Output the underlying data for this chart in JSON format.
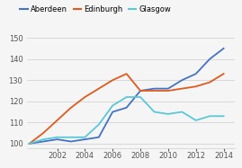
{
  "years": [
    2000,
    2001,
    2002,
    2003,
    2004,
    2005,
    2006,
    2007,
    2008,
    2009,
    2010,
    2011,
    2012,
    2013,
    2014
  ],
  "aberdeen": [
    100,
    101,
    102,
    101,
    102,
    103,
    115,
    117,
    125,
    126,
    126,
    130,
    133,
    140,
    145
  ],
  "edinburgh": [
    100,
    105,
    111,
    117,
    122,
    126,
    130,
    133,
    125,
    125,
    125,
    126,
    127,
    129,
    133
  ],
  "glasgow": [
    100,
    102,
    103,
    103,
    103,
    109,
    118,
    122,
    122,
    115,
    114,
    115,
    111,
    113,
    113
  ],
  "aberdeen_color": "#4472c4",
  "edinburgh_color": "#e05a1e",
  "glasgow_color": "#5bc8d8",
  "ylim": [
    98,
    152
  ],
  "yticks": [
    100,
    110,
    120,
    130,
    140,
    150
  ],
  "xticks": [
    2002,
    2004,
    2006,
    2008,
    2010,
    2012,
    2014
  ],
  "legend_labels": [
    "Aberdeen",
    "Edinburgh",
    "Glasgow"
  ],
  "background_color": "#f5f5f5",
  "grid_color": "#cccccc",
  "linewidth": 1.3,
  "fontsize": 6.0
}
